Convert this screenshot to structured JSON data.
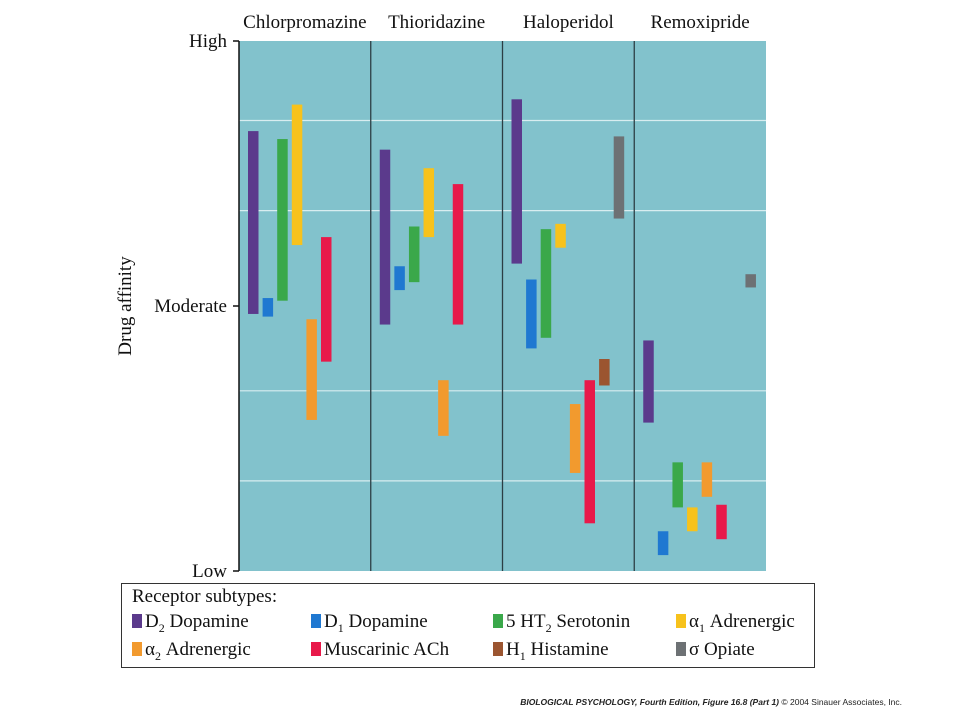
{
  "chart_data": {
    "type": "range-bar",
    "ylabel": "Drug affinity",
    "y_levels": [
      "High",
      "Moderate",
      "Low"
    ],
    "ylim": [
      0,
      100
    ],
    "drugs": [
      "Chlorpromazine",
      "Thioridazine",
      "Haloperidol",
      "Remoxipride"
    ],
    "series": [
      {
        "name": "D2 Dopamine",
        "color": "#5b3a8c",
        "ranges": [
          [
            48.5,
            83
          ],
          [
            46.5,
            79.5
          ],
          [
            58,
            89
          ],
          [
            28,
            43.5
          ]
        ]
      },
      {
        "name": "D1 Dopamine",
        "color": "#1f78d1",
        "ranges": [
          [
            48,
            51.5
          ],
          [
            53,
            57.5
          ],
          [
            42,
            55
          ],
          [
            3,
            7.5
          ]
        ]
      },
      {
        "name": "5 HT2 Serotonin",
        "color": "#3aa84a",
        "ranges": [
          [
            51,
            81.5
          ],
          [
            54.5,
            65
          ],
          [
            44,
            64.5
          ],
          [
            12,
            20.5
          ]
        ]
      },
      {
        "name": "α1 Adrenergic",
        "color": "#f7c21c",
        "ranges": [
          [
            61.5,
            88
          ],
          [
            63,
            76
          ],
          [
            61,
            65.5
          ],
          [
            7.5,
            12
          ]
        ]
      },
      {
        "name": "α2 Adrenergic",
        "color": "#f29a2e",
        "ranges": [
          [
            28.5,
            47.5
          ],
          [
            25.5,
            36
          ],
          [
            18.5,
            31.5
          ],
          [
            14,
            20.5
          ]
        ]
      },
      {
        "name": "Muscarinic ACh",
        "color": "#e8194a",
        "ranges": [
          [
            39.5,
            63
          ],
          [
            46.5,
            73
          ],
          [
            9,
            36
          ],
          [
            6,
            12.5
          ]
        ]
      },
      {
        "name": "H1 Histamine",
        "color": "#9b5530",
        "ranges": [
          null,
          null,
          [
            35,
            40
          ],
          null
        ]
      },
      {
        "name": "σ Opiate",
        "color": "#6d7174",
        "ranges": [
          null,
          null,
          [
            66.5,
            82
          ],
          [
            53.5,
            56
          ]
        ]
      }
    ]
  },
  "legend": {
    "title": "Receptor subtypes:",
    "items": [
      {
        "pre": "D",
        "sub": "2",
        "post": " Dopamine"
      },
      {
        "pre": "D",
        "sub": "1",
        "post": " Dopamine"
      },
      {
        "pre": "5 HT",
        "sub": "2",
        "post": " Serotonin"
      },
      {
        "pre": "α",
        "sub": "1",
        "post": " Adrenergic"
      },
      {
        "pre": "α",
        "sub": "2",
        "post": " Adrenergic"
      },
      {
        "pre": "Muscarinic ACh",
        "sub": "",
        "post": ""
      },
      {
        "pre": "H",
        "sub": "1",
        "post": " Histamine"
      },
      {
        "pre": "σ Opiate",
        "sub": "",
        "post": ""
      }
    ]
  },
  "credit": {
    "title": "BIOLOGICAL PSYCHOLOGY, Fourth Edition, Figure 16.8 (Part 1)",
    "rest": " © 2004 Sinauer Associates, Inc."
  },
  "colors": {
    "plot_bg": "#82c2cc",
    "grid": "#d8edf0",
    "divider": "#2c3e44"
  }
}
